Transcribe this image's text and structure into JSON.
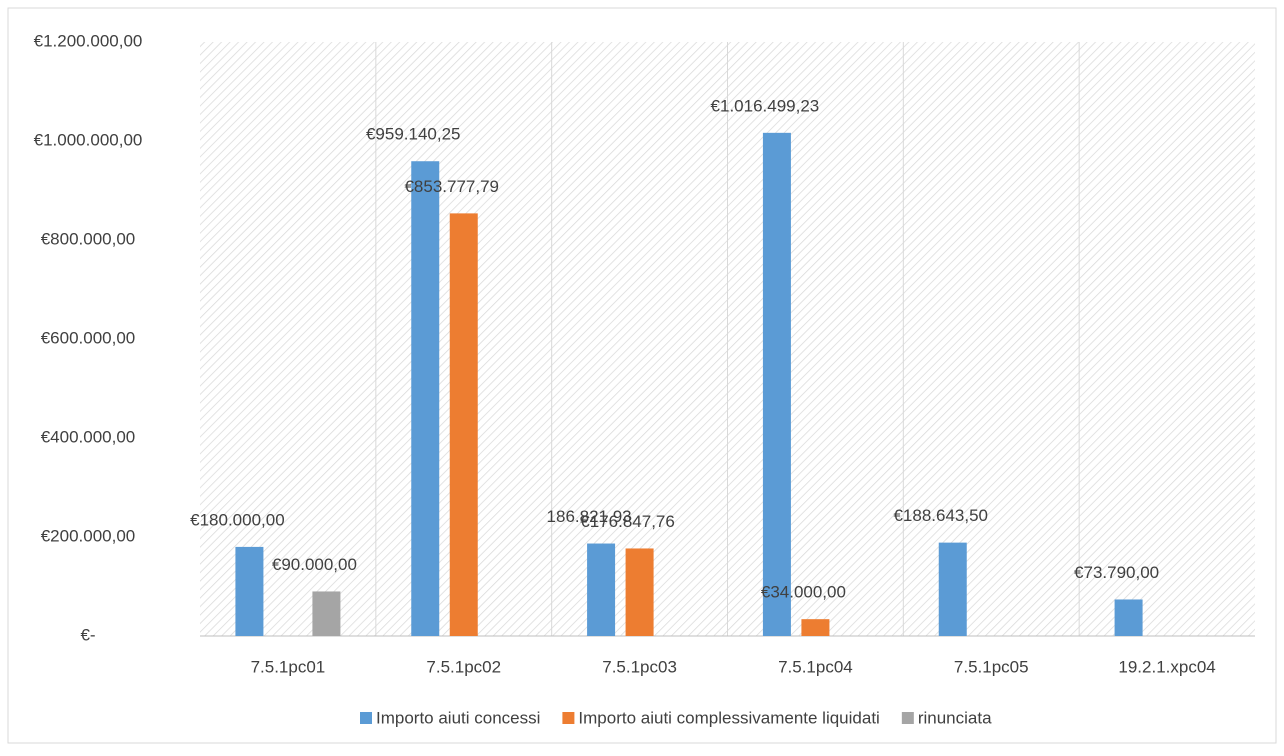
{
  "chart_data": {
    "type": "bar",
    "categories": [
      "7.5.1pc01",
      "7.5.1pc02",
      "7.5.1pc03",
      "7.5.1pc04",
      "7.5.1pc05",
      "19.2.1.xpc04"
    ],
    "series": [
      {
        "name": "Importo aiuti concessi",
        "color": "#5b9bd5",
        "values": [
          180000,
          959140.25,
          186821.93,
          1016499.23,
          188643.5,
          73790
        ],
        "value_labels": [
          "€180.000,00",
          "€959.140,25",
          "186.821,93",
          "€1.016.499,23",
          "€188.643,50",
          "€73.790,00"
        ]
      },
      {
        "name": "Importo aiuti complessivamente liquidati",
        "color": "#ed7d31",
        "values": [
          null,
          853777.79,
          176847.76,
          34000,
          null,
          null
        ],
        "value_labels": [
          null,
          "€853.777,79",
          "€176.847,76",
          "€34.000,00",
          null,
          null
        ]
      },
      {
        "name": "rinunciata",
        "color": "#a5a5a5",
        "values": [
          90000,
          null,
          null,
          null,
          null,
          null
        ],
        "value_labels": [
          "€90.000,00",
          null,
          null,
          null,
          null,
          null
        ]
      }
    ],
    "ylim": [
      0,
      1200000
    ],
    "yticks": [
      {
        "value": 0,
        "label": "€-"
      },
      {
        "value": 200000,
        "label": "€200.000,00"
      },
      {
        "value": 400000,
        "label": "€400.000,00"
      },
      {
        "value": 600000,
        "label": "€600.000,00"
      },
      {
        "value": 800000,
        "label": "€800.000,00"
      },
      {
        "value": 1000000,
        "label": "€1.000.000,00"
      },
      {
        "value": 1200000,
        "label": "€1.200.000,00"
      }
    ],
    "legend": "bottom"
  }
}
